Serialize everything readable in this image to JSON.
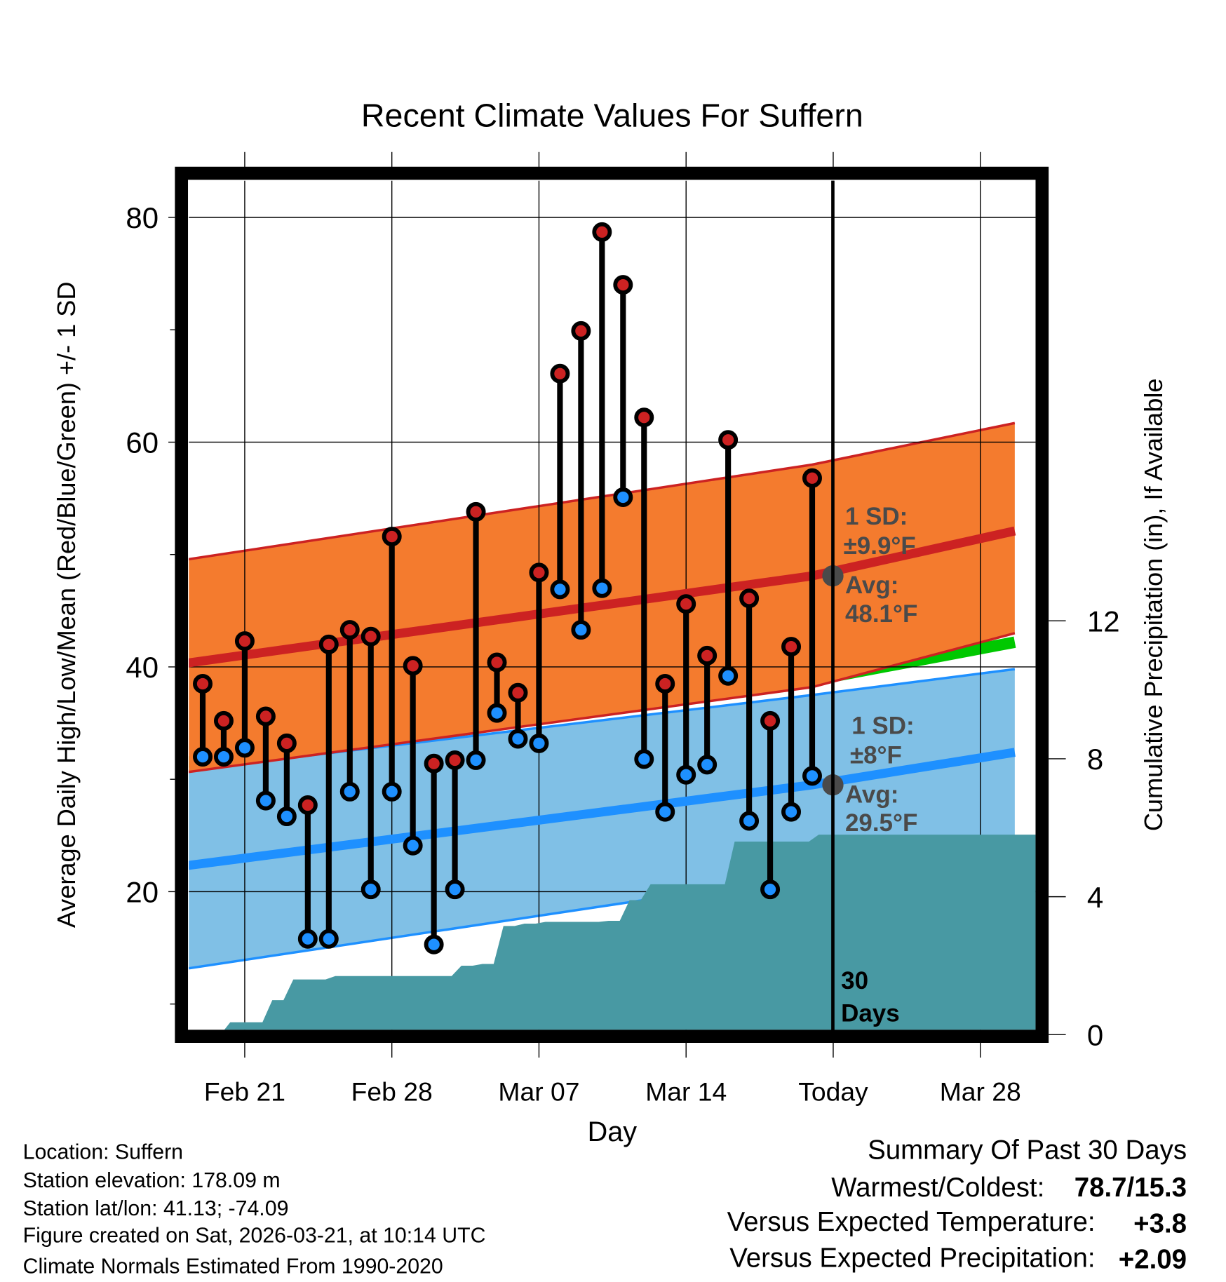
{
  "chart_data": {
    "type": "line",
    "title": "Recent Climate Values For Suffern",
    "xlabel": "Day",
    "ylabel": "Average Daily High/Low/Mean (Red/Blue/Green) +/- 1 SD",
    "y2label": "Cumulative Precipitation (in), If Available",
    "ylim": [
      7.7,
      83.3
    ],
    "y2lim": [
      0,
      18
    ],
    "yticks": [
      "20",
      "40",
      "60",
      "80"
    ],
    "y2ticks": [
      "0",
      "4",
      "8",
      "12"
    ],
    "xticks": [
      "Feb 21",
      "Feb 28",
      "Mar 07",
      "Mar 14",
      "Today",
      "Mar 28"
    ],
    "grid": true,
    "days": [
      "Feb 19",
      "Feb 20",
      "Feb 21",
      "Feb 22",
      "Feb 23",
      "Feb 24",
      "Feb 25",
      "Feb 26",
      "Feb 27",
      "Feb 28",
      "Mar 01",
      "Mar 02",
      "Mar 03",
      "Mar 04",
      "Mar 05",
      "Mar 06",
      "Mar 07",
      "Mar 08",
      "Mar 09",
      "Mar 10",
      "Mar 11",
      "Mar 12",
      "Mar 13",
      "Mar 14",
      "Mar 15",
      "Mar 16",
      "Mar 17",
      "Mar 18",
      "Mar 19",
      "Mar 20"
    ],
    "series": [
      {
        "name": "Daily High",
        "color": "#cc2222",
        "values": [
          38.5,
          35.2,
          42.3,
          35.6,
          33.2,
          27.7,
          42.0,
          43.3,
          42.7,
          51.6,
          40.1,
          31.4,
          31.7,
          53.8,
          40.4,
          37.7,
          48.4,
          66.1,
          69.9,
          78.7,
          74.0,
          62.2,
          38.5,
          45.6,
          41.0,
          60.2,
          46.1,
          35.2,
          41.8,
          56.8
        ]
      },
      {
        "name": "Daily Low",
        "color": "#1e90ff",
        "values": [
          32.0,
          32.0,
          32.8,
          28.1,
          26.7,
          15.8,
          15.8,
          28.9,
          20.2,
          28.9,
          24.1,
          15.3,
          20.2,
          31.7,
          35.9,
          33.6,
          33.2,
          46.9,
          43.3,
          47.0,
          55.1,
          31.8,
          27.1,
          30.4,
          31.3,
          39.2,
          26.3,
          20.2,
          27.1,
          30.3
        ]
      },
      {
        "name": "Cumulative Precipitation",
        "color": "#4899a3",
        "values": [
          0,
          0.36,
          0.36,
          1.0,
          1.6,
          1.6,
          1.7,
          1.7,
          1.7,
          1.7,
          1.7,
          1.7,
          2.0,
          2.05,
          3.15,
          3.22,
          3.27,
          3.27,
          3.27,
          3.3,
          3.9,
          4.36,
          4.36,
          4.36,
          4.36,
          5.6,
          5.6,
          5.6,
          5.6,
          5.8
        ]
      }
    ],
    "normals": {
      "day_offsets": [
        -1.66,
        29,
        38.64
      ],
      "high_avg": [
        40.1,
        48.1,
        52.1
      ],
      "high_upper": [
        49.3,
        58.0,
        61.7
      ],
      "high_lower": [
        30.4,
        38.2,
        43.0
      ],
      "mean_avg": [
        31.3,
        38.8,
        42.2
      ],
      "low_avg": [
        22.1,
        29.5,
        32.4
      ],
      "low_upper": [
        30.6,
        37.5,
        39.8
      ],
      "low_lower": [
        12.9,
        21.5,
        24.4
      ],
      "colors": {
        "high_band": "#f47b2e",
        "high_line": "#cc2222",
        "mean_line": "#00c800",
        "low_band": "#80c0e6",
        "low_line": "#1e90ff"
      }
    },
    "annotations": {
      "high_sd": "1 SD:",
      "high_sd_value": "±9.9°F",
      "high_avg_label": "Avg:",
      "high_avg_value": "48.1°F",
      "low_sd": "1 SD:",
      "low_sd_value": "±8°F",
      "low_avg_label": "Avg:",
      "low_avg_value": "29.5°F",
      "window_count": "30",
      "window_unit": "Days"
    }
  },
  "footer": {
    "location": "Location: Suffern",
    "elevation": "Station elevation: 178.09 m",
    "latlon": "Station lat/lon: 41.13; -74.09",
    "created": "Figure created on Sat, 2026-03-21, at 10:14 UTC",
    "normals": "Climate Normals Estimated From 1990-2020"
  },
  "summary": {
    "title": "Summary Of Past 30 Days",
    "warm_cold_label": "Warmest/Coldest:",
    "warm_cold_value": "78.7/15.3",
    "temp_label": "Versus Expected Temperature:",
    "temp_value": "+3.8",
    "temp_color": "#d42a2a",
    "precip_label": "Versus Expected Precipitation:",
    "precip_value": "+2.09",
    "precip_color": "#1ec81e"
  }
}
